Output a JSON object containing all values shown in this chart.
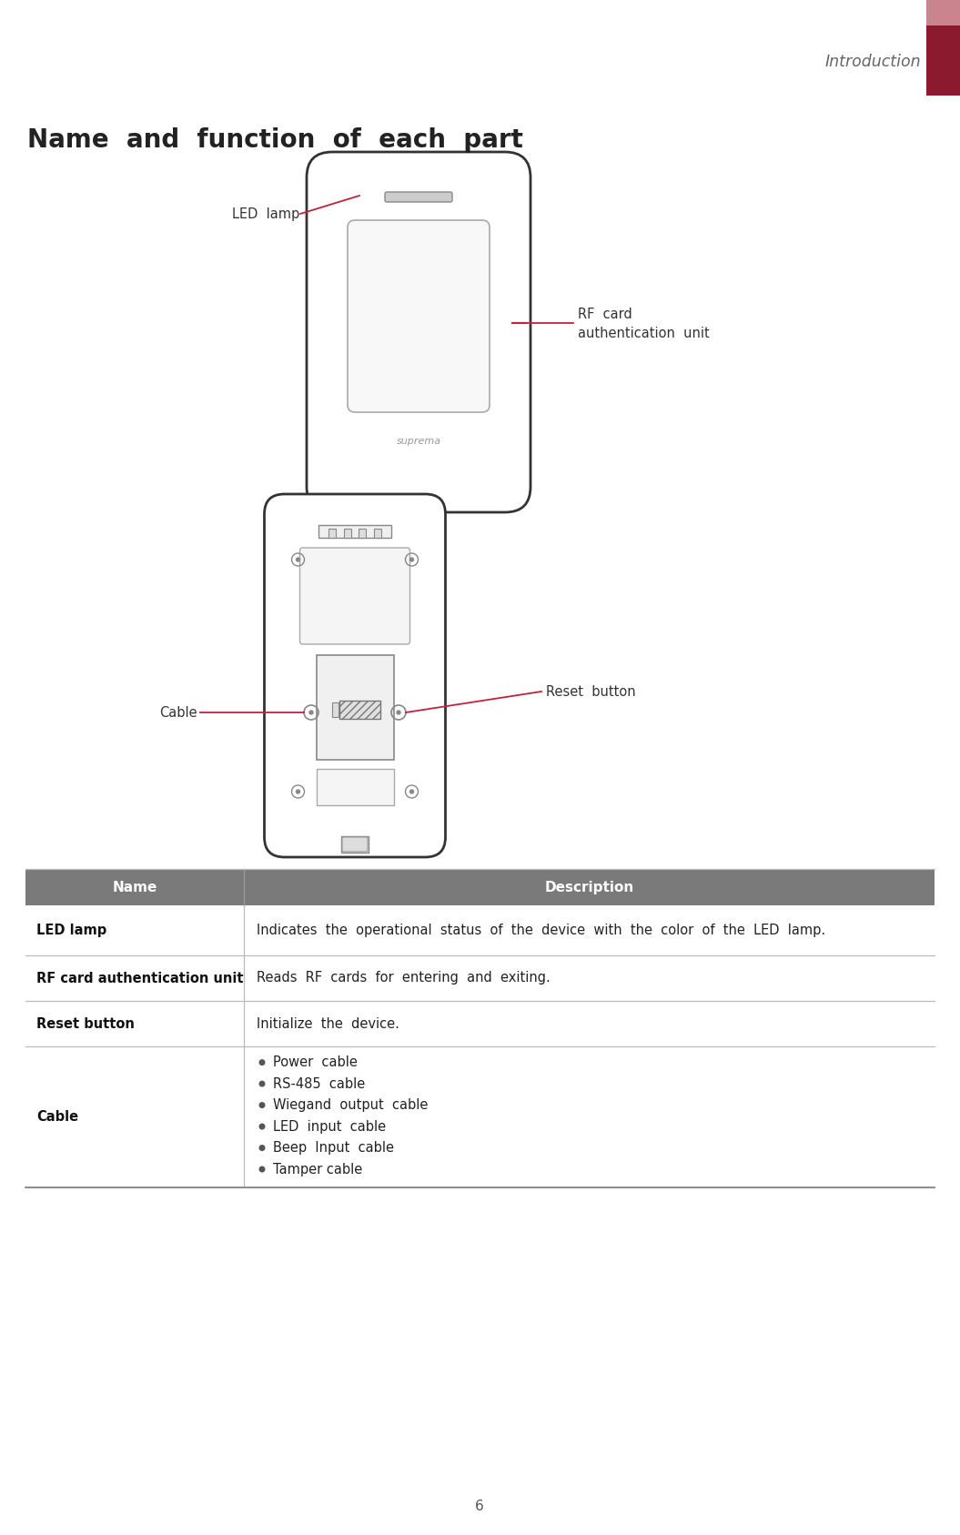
{
  "page_title": "Introduction",
  "section_title": "Name  and  function  of  each  part",
  "header_bg_color": "#7a7a7a",
  "header_text_color": "#ffffff",
  "row_border_color": "#bbbbbb",
  "table_headers": [
    "Name",
    "Description"
  ],
  "table_rows": [
    {
      "name": "LED lamp",
      "description": "Indicates  the  operational  status  of  the  device  with  the  color  of  the  LED  lamp.",
      "bullet_items": null
    },
    {
      "name": "RF card authentication unit",
      "description": "Reads  RF  cards  for  entering  and  exiting.",
      "bullet_items": null
    },
    {
      "name": "Reset button",
      "description": "Initialize  the  device.",
      "bullet_items": null
    },
    {
      "name": "Cable",
      "description": null,
      "bullet_items": [
        "Power  cable",
        "RS-485  cable",
        "Wiegand  output  cable",
        "LED  input  cable",
        "Beep  Input  cable",
        "Tamper cable"
      ]
    }
  ],
  "page_number": "6",
  "accent_color_dark": "#8b1a2e",
  "accent_color_light": "#c9848e",
  "label_led_lamp": "LED  lamp",
  "label_rf_card": "RF  card\nauthentication  unit",
  "label_reset_button": "Reset  button",
  "label_cable": "Cable",
  "line_color": "#c0233a"
}
